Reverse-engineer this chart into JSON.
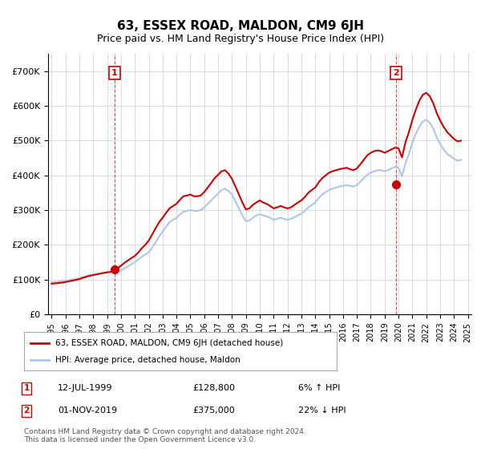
{
  "title": "63, ESSEX ROAD, MALDON, CM9 6JH",
  "subtitle": "Price paid vs. HM Land Registry's House Price Index (HPI)",
  "hpi_label": "HPI: Average price, detached house, Maldon",
  "property_label": "63, ESSEX ROAD, MALDON, CM9 6JH (detached house)",
  "hpi_color": "#aec6e8",
  "property_color": "#cc0000",
  "annotation1_color": "#cc0000",
  "annotation2_color": "#cc0000",
  "background_color": "#ffffff",
  "grid_color": "#dddddd",
  "ylim": [
    0,
    750000
  ],
  "yticks": [
    0,
    100000,
    200000,
    300000,
    400000,
    500000,
    600000,
    700000
  ],
  "ytick_labels": [
    "£0",
    "£100K",
    "£200K",
    "£300K",
    "£400K",
    "£500K",
    "£600K",
    "£700K"
  ],
  "sale1": {
    "date_num": 1999.53,
    "price": 128800,
    "label": "1",
    "date_str": "12-JUL-1999",
    "pct": "6% ↑ HPI"
  },
  "sale2": {
    "date_num": 2019.83,
    "price": 375000,
    "label": "2",
    "date_str": "01-NOV-2019",
    "pct": "22% ↓ HPI"
  },
  "footer": "Contains HM Land Registry data © Crown copyright and database right 2024.\nThis data is licensed under the Open Government Licence v3.0.",
  "hpi_years": [
    1995.0,
    1995.25,
    1995.5,
    1995.75,
    1996.0,
    1996.25,
    1996.5,
    1996.75,
    1997.0,
    1997.25,
    1997.5,
    1997.75,
    1998.0,
    1998.25,
    1998.5,
    1998.75,
    1999.0,
    1999.25,
    1999.5,
    1999.75,
    2000.0,
    2000.25,
    2000.5,
    2000.75,
    2001.0,
    2001.25,
    2001.5,
    2001.75,
    2002.0,
    2002.25,
    2002.5,
    2002.75,
    2003.0,
    2003.25,
    2003.5,
    2003.75,
    2004.0,
    2004.25,
    2004.5,
    2004.75,
    2005.0,
    2005.25,
    2005.5,
    2005.75,
    2006.0,
    2006.25,
    2006.5,
    2006.75,
    2007.0,
    2007.25,
    2007.5,
    2007.75,
    2008.0,
    2008.25,
    2008.5,
    2008.75,
    2009.0,
    2009.25,
    2009.5,
    2009.75,
    2010.0,
    2010.25,
    2010.5,
    2010.75,
    2011.0,
    2011.25,
    2011.5,
    2011.75,
    2012.0,
    2012.25,
    2012.5,
    2012.75,
    2013.0,
    2013.25,
    2013.5,
    2013.75,
    2014.0,
    2014.25,
    2014.5,
    2014.75,
    2015.0,
    2015.25,
    2015.5,
    2015.75,
    2016.0,
    2016.25,
    2016.5,
    2016.75,
    2017.0,
    2017.25,
    2017.5,
    2017.75,
    2018.0,
    2018.25,
    2018.5,
    2018.75,
    2019.0,
    2019.25,
    2019.5,
    2019.75,
    2020.0,
    2020.25,
    2020.5,
    2020.75,
    2021.0,
    2021.25,
    2021.5,
    2021.75,
    2022.0,
    2022.25,
    2022.5,
    2022.75,
    2023.0,
    2023.25,
    2023.5,
    2023.75,
    2024.0,
    2024.25,
    2024.5
  ],
  "hpi_values": [
    92000,
    93000,
    94000,
    95500,
    97000,
    98500,
    100000,
    102000,
    104000,
    107000,
    110000,
    112000,
    114000,
    116000,
    118000,
    120000,
    121000,
    122000,
    123000,
    124000,
    126000,
    132000,
    138000,
    144000,
    150000,
    158000,
    166000,
    172000,
    178000,
    192000,
    208000,
    224000,
    238000,
    252000,
    265000,
    272000,
    278000,
    288000,
    295000,
    298000,
    300000,
    298000,
    298000,
    300000,
    308000,
    318000,
    328000,
    338000,
    348000,
    358000,
    362000,
    355000,
    345000,
    325000,
    305000,
    285000,
    268000,
    270000,
    278000,
    285000,
    288000,
    285000,
    282000,
    278000,
    272000,
    275000,
    278000,
    275000,
    272000,
    275000,
    280000,
    285000,
    290000,
    298000,
    308000,
    315000,
    322000,
    335000,
    345000,
    352000,
    358000,
    362000,
    365000,
    368000,
    370000,
    372000,
    370000,
    368000,
    372000,
    382000,
    392000,
    402000,
    408000,
    412000,
    415000,
    415000,
    412000,
    415000,
    420000,
    425000,
    422000,
    398000,
    435000,
    462000,
    495000,
    520000,
    540000,
    555000,
    560000,
    552000,
    535000,
    510000,
    490000,
    475000,
    462000,
    455000,
    448000,
    442000,
    445000
  ],
  "prop_years": [
    1995.0,
    1995.25,
    1995.5,
    1995.75,
    1996.0,
    1996.25,
    1996.5,
    1996.75,
    1997.0,
    1997.25,
    1997.5,
    1997.75,
    1998.0,
    1998.25,
    1998.5,
    1998.75,
    1999.0,
    1999.25,
    1999.5,
    1999.75,
    2000.0,
    2000.25,
    2000.5,
    2000.75,
    2001.0,
    2001.25,
    2001.5,
    2001.75,
    2002.0,
    2002.25,
    2002.5,
    2002.75,
    2003.0,
    2003.25,
    2003.5,
    2003.75,
    2004.0,
    2004.25,
    2004.5,
    2004.75,
    2005.0,
    2005.25,
    2005.5,
    2005.75,
    2006.0,
    2006.25,
    2006.5,
    2006.75,
    2007.0,
    2007.25,
    2007.5,
    2007.75,
    2008.0,
    2008.25,
    2008.5,
    2008.75,
    2009.0,
    2009.25,
    2009.5,
    2009.75,
    2010.0,
    2010.25,
    2010.5,
    2010.75,
    2011.0,
    2011.25,
    2011.5,
    2011.75,
    2012.0,
    2012.25,
    2012.5,
    2012.75,
    2013.0,
    2013.25,
    2013.5,
    2013.75,
    2014.0,
    2014.25,
    2014.5,
    2014.75,
    2015.0,
    2015.25,
    2015.5,
    2015.75,
    2016.0,
    2016.25,
    2016.5,
    2016.75,
    2017.0,
    2017.25,
    2017.5,
    2017.75,
    2018.0,
    2018.25,
    2018.5,
    2018.75,
    2019.0,
    2019.25,
    2019.5,
    2019.75,
    2020.0,
    2020.25,
    2020.5,
    2020.75,
    2021.0,
    2021.25,
    2021.5,
    2021.75,
    2022.0,
    2022.25,
    2022.5,
    2022.75,
    2023.0,
    2023.25,
    2023.5,
    2023.75,
    2024.0,
    2024.25,
    2024.5
  ],
  "prop_values": [
    88000,
    89000,
    90000,
    91000,
    93000,
    95000,
    97000,
    99000,
    101000,
    105000,
    108000,
    111000,
    113000,
    115000,
    117000,
    119000,
    121000,
    122000,
    128800,
    132000,
    140000,
    148000,
    155000,
    162000,
    168000,
    178000,
    190000,
    200000,
    212000,
    230000,
    248000,
    265000,
    278000,
    292000,
    305000,
    312000,
    318000,
    330000,
    340000,
    342000,
    345000,
    340000,
    340000,
    342000,
    352000,
    365000,
    378000,
    392000,
    402000,
    412000,
    415000,
    405000,
    390000,
    368000,
    345000,
    322000,
    302000,
    305000,
    315000,
    322000,
    328000,
    322000,
    318000,
    312000,
    305000,
    308000,
    312000,
    308000,
    305000,
    308000,
    315000,
    322000,
    328000,
    338000,
    350000,
    358000,
    365000,
    380000,
    392000,
    400000,
    408000,
    412000,
    415000,
    418000,
    420000,
    422000,
    418000,
    415000,
    420000,
    432000,
    445000,
    458000,
    465000,
    470000,
    472000,
    470000,
    465000,
    470000,
    475000,
    480000,
    478000,
    452000,
    495000,
    525000,
    560000,
    590000,
    615000,
    632000,
    638000,
    628000,
    608000,
    580000,
    558000,
    540000,
    525000,
    515000,
    505000,
    498000,
    500000
  ],
  "xlim": [
    1994.75,
    2025.25
  ],
  "xtick_years": [
    1995,
    1996,
    1997,
    1998,
    1999,
    2000,
    2001,
    2002,
    2003,
    2004,
    2005,
    2006,
    2007,
    2008,
    2009,
    2010,
    2011,
    2012,
    2013,
    2014,
    2015,
    2016,
    2017,
    2018,
    2019,
    2020,
    2021,
    2022,
    2023,
    2024,
    2025
  ]
}
